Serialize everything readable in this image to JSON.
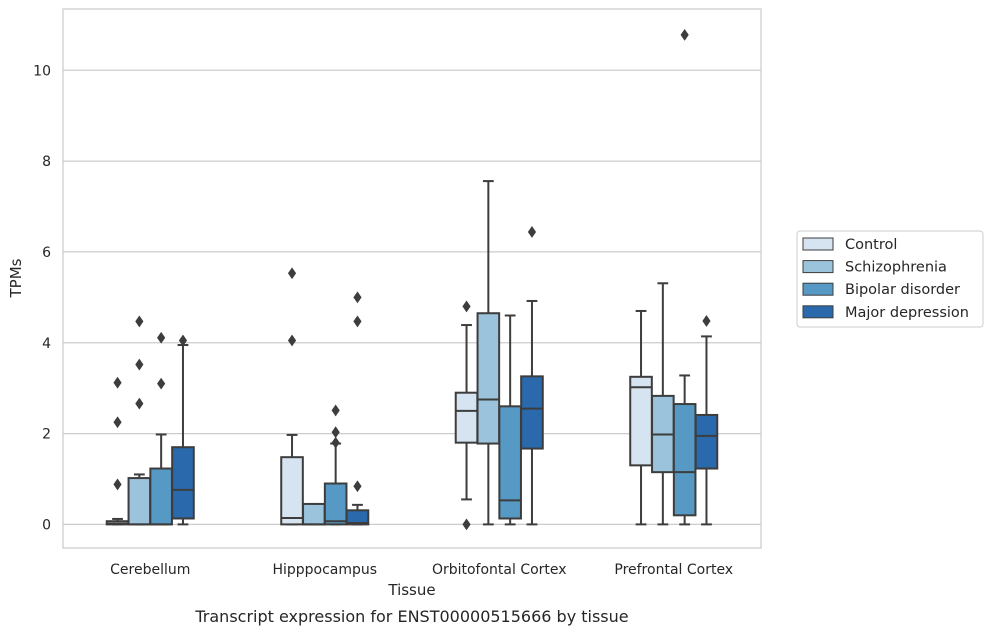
{
  "chart_data": {
    "type": "box",
    "caption": "Transcript expression for ENST00000515666 by tissue",
    "xlabel": "Tissue",
    "ylabel": "TPMs",
    "ylim": [
      -0.52,
      11.35
    ],
    "yticks": [
      0,
      2,
      4,
      6,
      8,
      10
    ],
    "grid": true,
    "legend_position": "right",
    "categories": [
      "Cerebellum",
      "Hipppocampus",
      "Orbitofontal Cortex",
      "Prefrontal Cortex"
    ],
    "series": [
      {
        "name": "Control",
        "color": "#d6e4f1",
        "boxes": [
          {
            "whislo": 0.0,
            "q1": 0.0,
            "med": 0.02,
            "q3": 0.07,
            "whishi": 0.12,
            "fliers": [
              0.88,
              2.25,
              3.12
            ]
          },
          {
            "whislo": 0.0,
            "q1": 0.0,
            "med": 0.14,
            "q3": 1.48,
            "whishi": 1.97,
            "fliers": [
              4.05,
              5.53
            ]
          },
          {
            "whislo": 0.55,
            "q1": 1.8,
            "med": 2.5,
            "q3": 2.9,
            "whishi": 4.39,
            "fliers": [
              0.0,
              4.8
            ]
          },
          {
            "whislo": 0.0,
            "q1": 1.3,
            "med": 3.02,
            "q3": 3.25,
            "whishi": 4.7,
            "fliers": []
          }
        ]
      },
      {
        "name": "Schizophrenia",
        "color": "#9cc3dc",
        "boxes": [
          {
            "whislo": 0.0,
            "q1": 0.0,
            "med": 0.0,
            "q3": 1.02,
            "whishi": 1.1,
            "fliers": [
              2.66,
              3.52,
              4.47
            ]
          },
          {
            "whislo": 0.0,
            "q1": 0.0,
            "med": 0.0,
            "q3": 0.45,
            "whishi": 0.45,
            "fliers": []
          },
          {
            "whislo": 0.0,
            "q1": 1.78,
            "med": 2.75,
            "q3": 4.65,
            "whishi": 7.56,
            "fliers": []
          },
          {
            "whislo": 0.0,
            "q1": 1.15,
            "med": 1.98,
            "q3": 2.83,
            "whishi": 5.31,
            "fliers": []
          }
        ]
      },
      {
        "name": "Bipolar disorder",
        "color": "#5699c5",
        "boxes": [
          {
            "whislo": 0.0,
            "q1": 0.0,
            "med": 0.0,
            "q3": 1.23,
            "whishi": 1.98,
            "fliers": [
              3.1,
              4.11
            ]
          },
          {
            "whislo": 0.0,
            "q1": 0.0,
            "med": 0.07,
            "q3": 0.9,
            "whishi": 1.78,
            "fliers": [
              1.8,
              2.03,
              2.51
            ]
          },
          {
            "whislo": 0.0,
            "q1": 0.13,
            "med": 0.53,
            "q3": 2.6,
            "whishi": 4.6,
            "fliers": []
          },
          {
            "whislo": 0.0,
            "q1": 0.2,
            "med": 1.15,
            "q3": 2.65,
            "whishi": 3.28,
            "fliers": [
              10.78
            ]
          }
        ]
      },
      {
        "name": "Major depression",
        "color": "#2a6aac",
        "boxes": [
          {
            "whislo": 0.0,
            "q1": 0.13,
            "med": 0.76,
            "q3": 1.7,
            "whishi": 3.95,
            "fliers": [
              4.05
            ]
          },
          {
            "whislo": 0.0,
            "q1": 0.0,
            "med": 0.03,
            "q3": 0.31,
            "whishi": 0.43,
            "fliers": [
              0.84,
              4.47,
              5.0
            ]
          },
          {
            "whislo": 0.0,
            "q1": 1.67,
            "med": 2.55,
            "q3": 3.26,
            "whishi": 4.92,
            "fliers": [
              6.44
            ]
          },
          {
            "whislo": 0.0,
            "q1": 1.23,
            "med": 1.95,
            "q3": 2.41,
            "whishi": 4.14,
            "fliers": [
              4.48
            ]
          }
        ]
      }
    ]
  }
}
